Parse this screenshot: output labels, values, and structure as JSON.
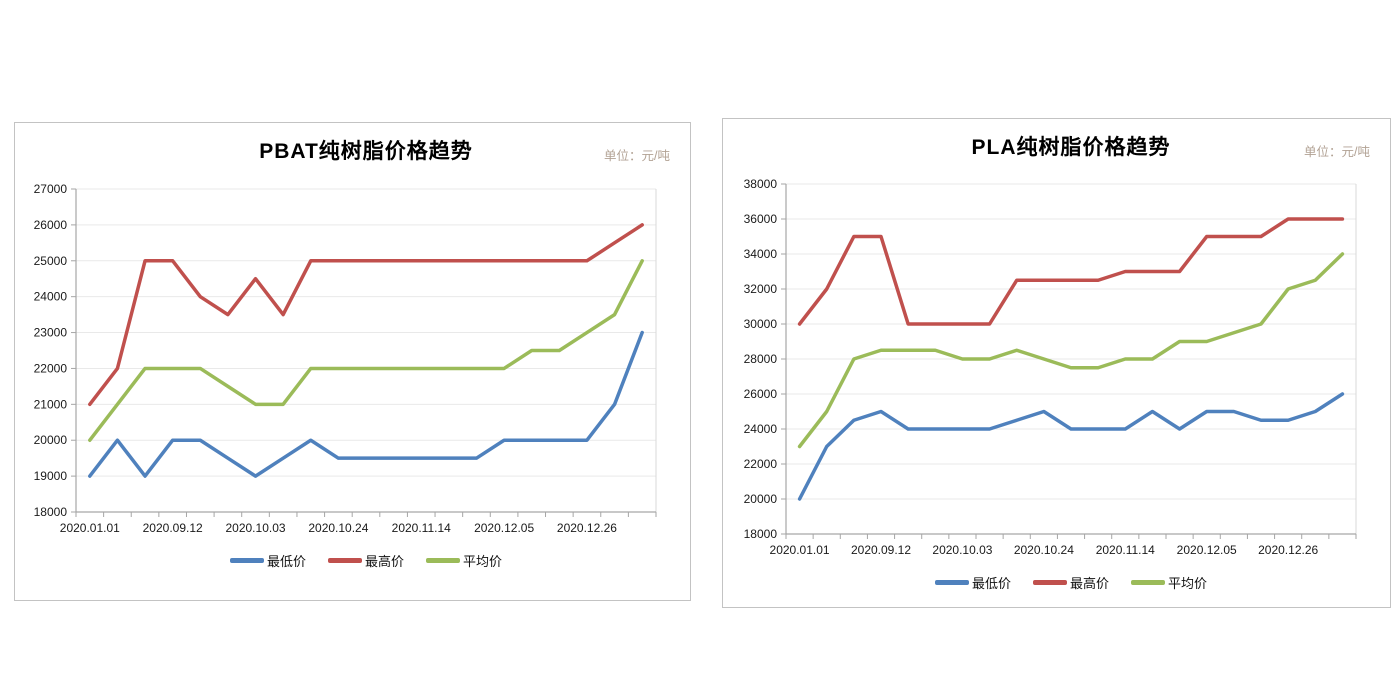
{
  "chart_data": [
    {
      "type": "line",
      "title": "PBAT纯树脂价格趋势",
      "unit_label": "单位：元/吨",
      "ylim": [
        18000,
        27000
      ],
      "y_step": 1000,
      "y_tick_labels": [
        "27000",
        "26000",
        "25000",
        "24000",
        "23000",
        "22000",
        "21000",
        "20000",
        "19000",
        "18000"
      ],
      "x_tick_labels": [
        "2020.01.01",
        "2020.09.12",
        "2020.10.03",
        "2020.10.24",
        "2020.11.14",
        "2020.12.05",
        "2020.12.26"
      ],
      "label_every": 3,
      "grid": true,
      "legend_position": "bottom",
      "series": [
        {
          "name": "最低价",
          "color": "#4F81BD",
          "values": [
            19000,
            20000,
            19000,
            20000,
            20000,
            19500,
            19000,
            19500,
            20000,
            19500,
            19500,
            19500,
            19500,
            19500,
            19500,
            20000,
            20000,
            20000,
            20000,
            21000,
            23000
          ]
        },
        {
          "name": "最高价",
          "color": "#C0504D",
          "values": [
            21000,
            22000,
            25000,
            25000,
            24000,
            23500,
            24500,
            23500,
            25000,
            25000,
            25000,
            25000,
            25000,
            25000,
            25000,
            25000,
            25000,
            25000,
            25000,
            25500,
            26000
          ]
        },
        {
          "name": "平均价",
          "color": "#9BBB59",
          "values": [
            20000,
            21000,
            22000,
            22000,
            22000,
            21500,
            21000,
            21000,
            22000,
            22000,
            22000,
            22000,
            22000,
            22000,
            22000,
            22000,
            22500,
            22500,
            23000,
            23500,
            25000
          ]
        }
      ]
    },
    {
      "type": "line",
      "title": "PLA纯树脂价格趋势",
      "unit_label": "单位：元/吨",
      "ylim": [
        18000,
        38000
      ],
      "y_step": 2000,
      "y_tick_labels": [
        "38000",
        "36000",
        "34000",
        "32000",
        "30000",
        "28000",
        "26000",
        "24000",
        "22000",
        "20000",
        "18000"
      ],
      "x_tick_labels": [
        "2020.01.01",
        "2020.09.12",
        "2020.10.03",
        "2020.10.24",
        "2020.11.14",
        "2020.12.05",
        "2020.12.26"
      ],
      "label_every": 3,
      "grid": true,
      "legend_position": "bottom",
      "series": [
        {
          "name": "最低价",
          "color": "#4F81BD",
          "values": [
            20000,
            23000,
            24500,
            25000,
            24000,
            24000,
            24000,
            24000,
            24500,
            25000,
            24000,
            24000,
            24000,
            25000,
            24000,
            25000,
            25000,
            24500,
            24500,
            25000,
            26000
          ]
        },
        {
          "name": "最高价",
          "color": "#C0504D",
          "values": [
            30000,
            32000,
            35000,
            35000,
            30000,
            30000,
            30000,
            30000,
            32500,
            32500,
            32500,
            32500,
            33000,
            33000,
            33000,
            35000,
            35000,
            35000,
            36000,
            36000,
            36000
          ]
        },
        {
          "name": "平均价",
          "color": "#9BBB59",
          "values": [
            23000,
            25000,
            28000,
            28500,
            28500,
            28500,
            28000,
            28000,
            28500,
            28000,
            27500,
            27500,
            28000,
            28000,
            29000,
            29000,
            29500,
            30000,
            32000,
            32500,
            34000
          ]
        }
      ]
    }
  ]
}
